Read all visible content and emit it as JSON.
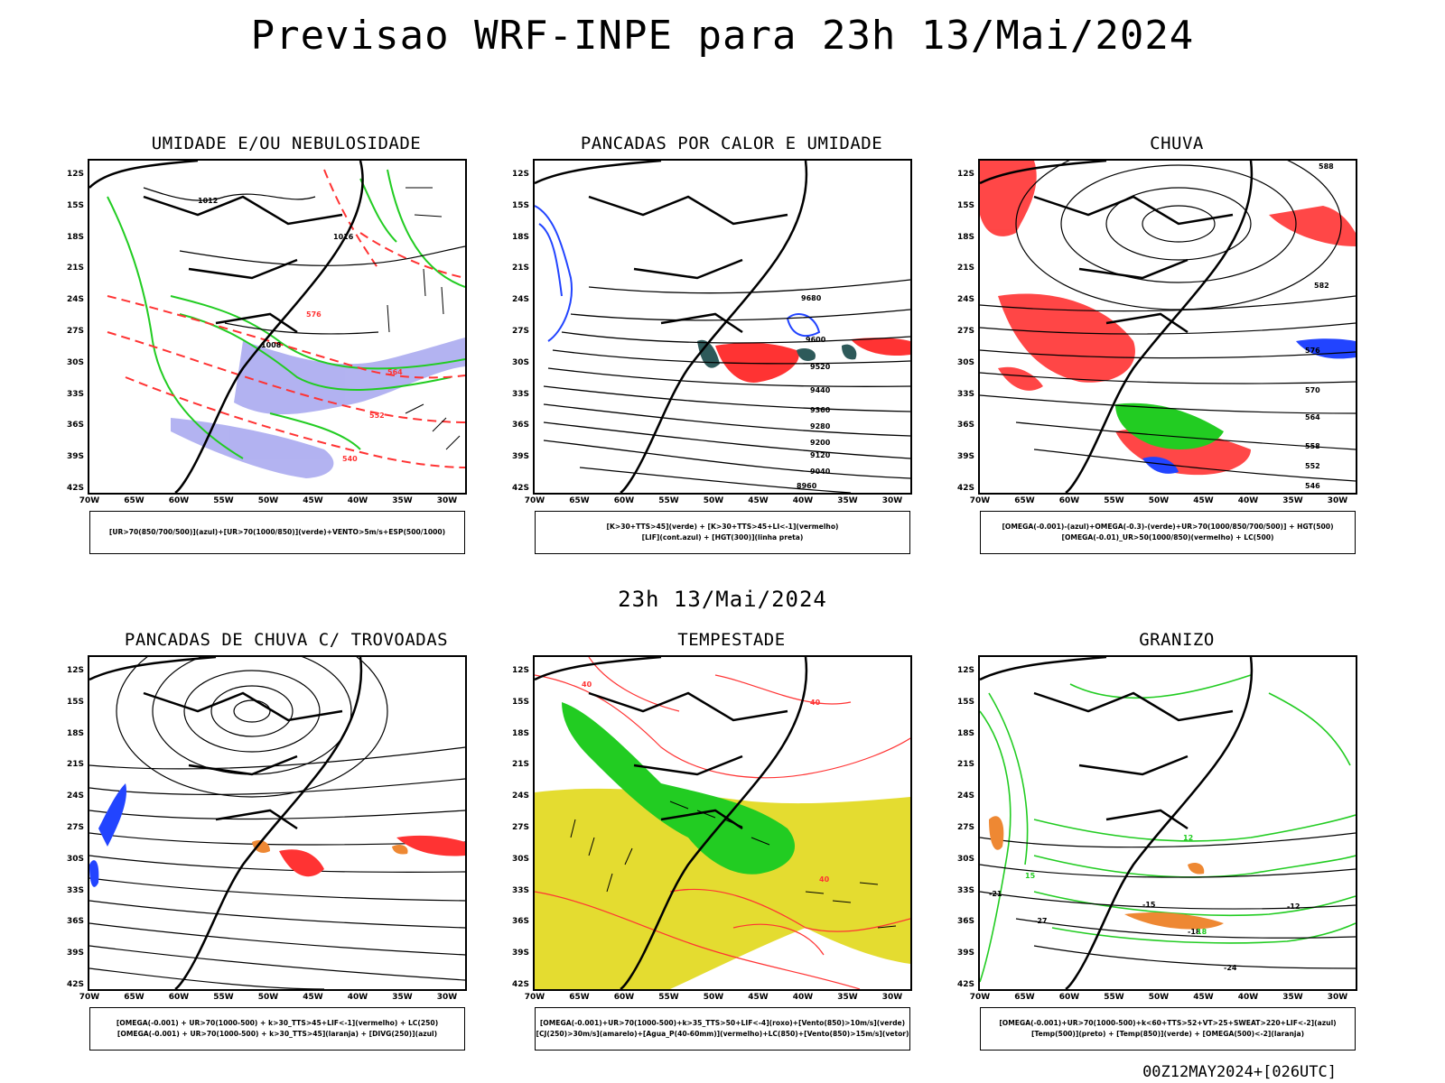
{
  "main_title": "Previsao WRF-INPE  para 23h 13/Mai/2024",
  "mid_title": "23h 13/Mai/2024",
  "footer": "00Z12MAY2024+[026UTC]",
  "axes": {
    "lat_labels": [
      "12S",
      "15S",
      "18S",
      "21S",
      "24S",
      "27S",
      "30S",
      "33S",
      "36S",
      "39S",
      "42S"
    ],
    "lon_labels": [
      "70W",
      "65W",
      "60W",
      "55W",
      "50W",
      "45W",
      "40W",
      "35W",
      "30W"
    ]
  },
  "colors": {
    "green": "#22cc22",
    "red": "#ff3333",
    "blue": "#2244ff",
    "lavender": "#a0a0ee",
    "yellow": "#e4dc30",
    "orange": "#ee8833",
    "teal": "#2e5a5a"
  },
  "panels": [
    {
      "title": "UMIDADE E/OU NEBULOSIDADE",
      "legend_line1": "[UR>70(850/700/500)](azul)+[UR>70(1000/850)](verde)+VENTO>5m/s+ESP(500/1000)",
      "legend_line2": "",
      "contour_labels": [
        "1012",
        "1016",
        "1008",
        "540",
        "552",
        "564",
        "576"
      ]
    },
    {
      "title": "PANCADAS POR CALOR E UMIDADE",
      "legend_line1": "[K>30+TTS>45](verde) + [K>30+TTS>45+LI<-1](vermelho)",
      "legend_line2": "[LIF](cont.azul) + [HGT(300)](linha preta)",
      "contour_labels": [
        "9680",
        "9600",
        "9520",
        "9440",
        "9360",
        "9280",
        "9200",
        "9120",
        "9040",
        "8960"
      ]
    },
    {
      "title": "CHUVA",
      "legend_line1": "[OMEGA(-0.001)-(azul)+OMEGA(-0.3)-(verde)+UR>70(1000/850/700/500)] + HGT(500)",
      "legend_line2": "[OMEGA(-0.01)_UR>50(1000/850)(vermelho) + LC(500)",
      "contour_labels": [
        "588",
        "582",
        "576",
        "570",
        "564",
        "558",
        "552",
        "546"
      ]
    },
    {
      "title": "PANCADAS DE CHUVA C/ TROVOADAS",
      "legend_line1": "[OMEGA(-0.001) + UR>70(1000-500) + k>30_TTS>45+LIF<-1](vermelho) + LC(250)",
      "legend_line2": "[OMEGA(-0.001) + UR>70(1000-500) + k>30_TTS>45](laranja) + [DIVG(250)](azul)",
      "contour_labels": []
    },
    {
      "title": "TEMPESTADE",
      "legend_line1": "[OMEGA(-0.001)+UR>70(1000-500)+k>35_TTS>50+LIF<-4](roxo)+[Vento(850)>10m/s](verde)",
      "legend_line2": "[CJ(250)>30m/s](amarelo)+[Agua_P(40-60mm)](vermelho)+LC(850)+[Vento(850)>15m/s](vetor)",
      "contour_labels": [
        "40",
        "40",
        "40"
      ]
    },
    {
      "title": "GRANIZO",
      "legend_line1": "[OMEGA(-0.001)+UR>70(1000-500)+k<60+TTS>52+VT>25+SWEAT>220+LIF<-2](azul)",
      "legend_line2": "[Temp(500)](preto) + [Temp(850)](verde) + [OMEGA(500)<-2](laranja)",
      "contour_labels": [
        "-12",
        "-15",
        "-18",
        "-21",
        "-24",
        "-27",
        "12",
        "15",
        "18"
      ]
    }
  ]
}
